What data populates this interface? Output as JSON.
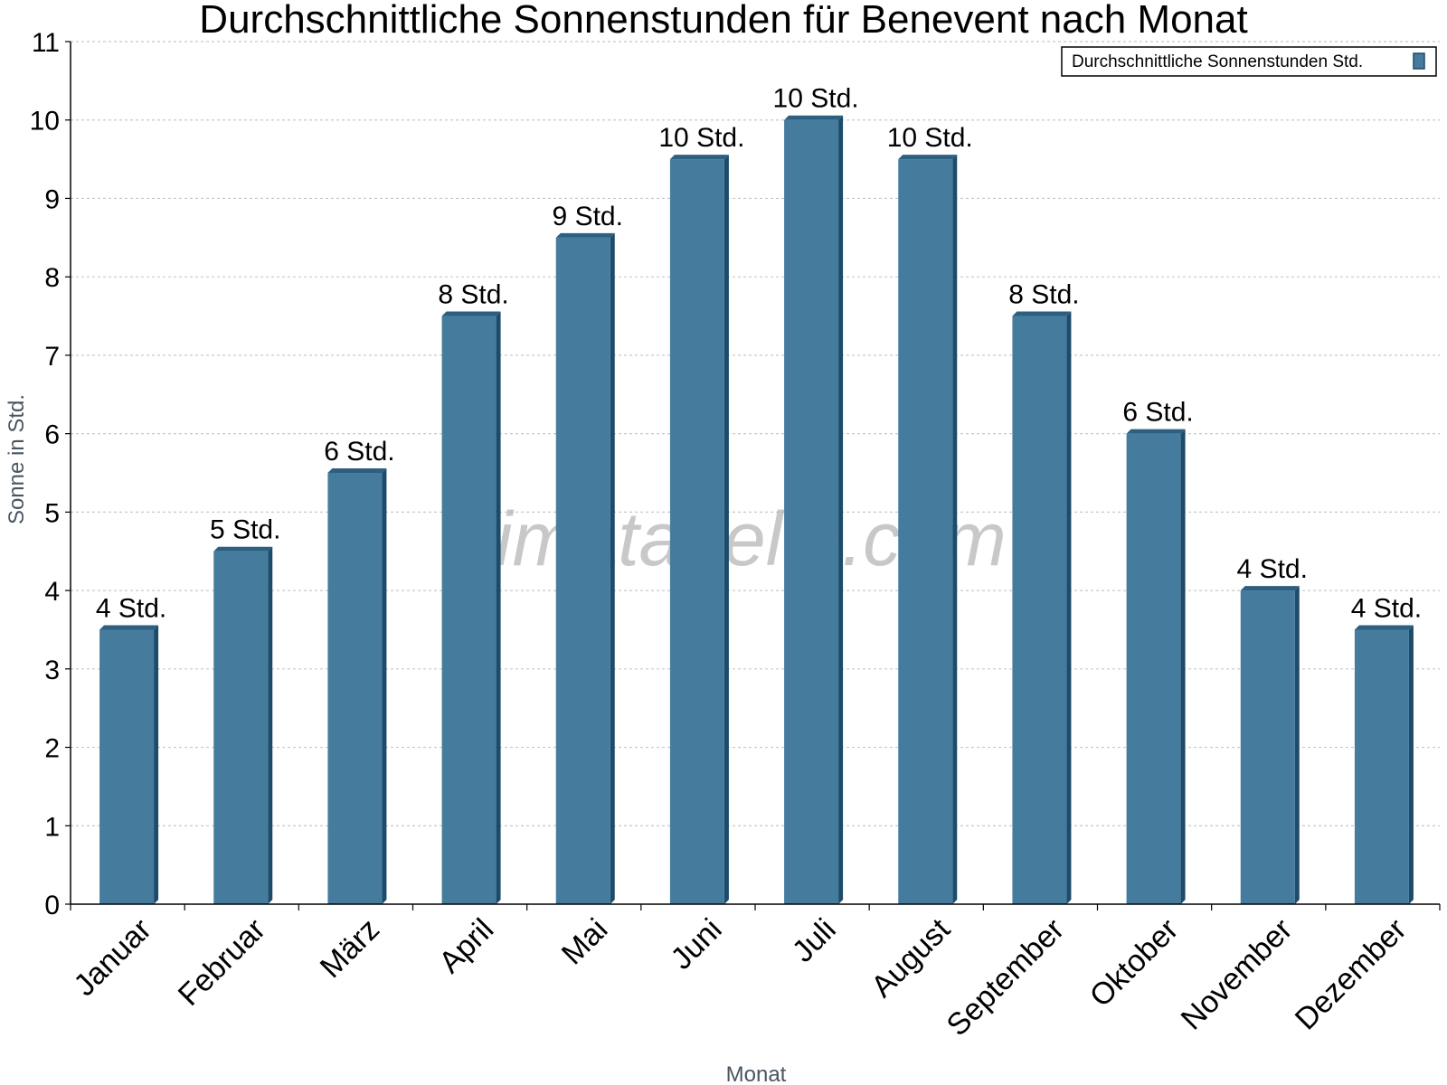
{
  "chart_data": {
    "type": "bar",
    "title": "Durchschnittliche Sonnenstunden für Benevent nach Monat",
    "xlabel": "Monat",
    "ylabel": "Sonne in Std.",
    "ylim": [
      0,
      11
    ],
    "yticks": [
      "0",
      "1",
      "2",
      "3",
      "4",
      "5",
      "6",
      "7",
      "8",
      "9",
      "10",
      "11"
    ],
    "grid": true,
    "legend_position": "top-right",
    "categories": [
      "Januar",
      "Februar",
      "März",
      "April",
      "Mai",
      "Juni",
      "Juli",
      "August",
      "September",
      "Oktober",
      "November",
      "Dezember"
    ],
    "series": [
      {
        "name": "Durchschnittliche Sonnenstunden Std.",
        "values": [
          3.5,
          4.5,
          5.5,
          7.5,
          8.5,
          9.5,
          10,
          9.5,
          7.5,
          6,
          4,
          3.5
        ],
        "data_labels": [
          "4 Std.",
          "5 Std.",
          "6 Std.",
          "8 Std.",
          "9 Std.",
          "10 Std.",
          "10 Std.",
          "10 Std.",
          "8 Std.",
          "6 Std.",
          "4 Std.",
          "4 Std."
        ]
      }
    ],
    "colors": {
      "bar": "#457b9d",
      "bar_side": "#1d4b6b",
      "bar_top": "#2d5f82",
      "grid": "#c8c8c8",
      "axis": "#000000"
    }
  },
  "watermark": "klimatabelle.com"
}
